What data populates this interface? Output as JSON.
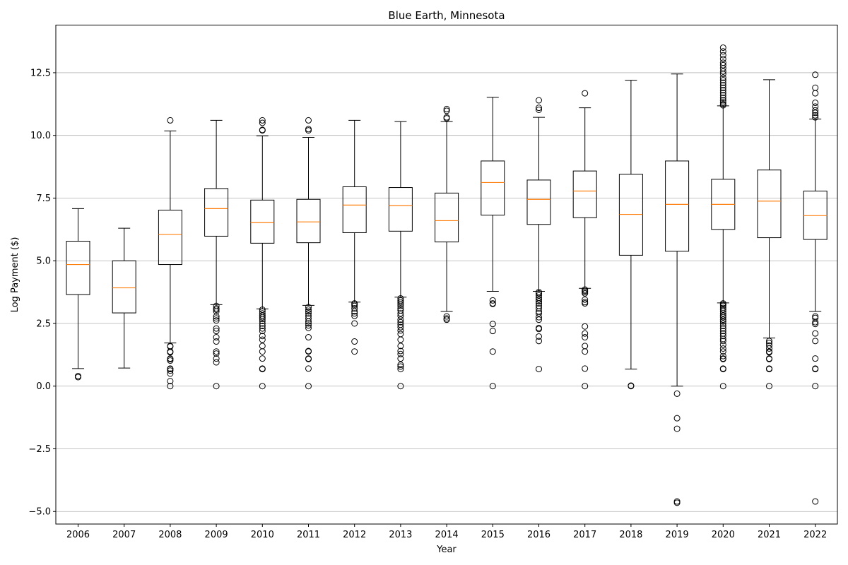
{
  "chart_data": {
    "type": "box",
    "title": "Blue Earth, Minnesota",
    "xlabel": "Year",
    "ylabel": "Log Payment ($)",
    "ylim": [
      -5.5,
      14.4
    ],
    "yticks": [
      -5.0,
      -2.5,
      0.0,
      2.5,
      5.0,
      7.5,
      10.0,
      12.5
    ],
    "ytick_labels": [
      "−5.0",
      "−2.5",
      "0.0",
      "2.5",
      "5.0",
      "7.5",
      "10.0",
      "12.5"
    ],
    "grid": "y",
    "colors": {
      "box": "#000000",
      "median": "#ff7f0e",
      "grid": "#b0b0b0"
    },
    "categories": [
      "2006",
      "2007",
      "2008",
      "2009",
      "2010",
      "2011",
      "2012",
      "2013",
      "2014",
      "2015",
      "2016",
      "2017",
      "2018",
      "2019",
      "2020",
      "2021",
      "2022"
    ],
    "boxes": [
      {
        "year": "2006",
        "whislo": 0.7,
        "q1": 3.65,
        "med": 4.85,
        "q3": 5.78,
        "whishi": 7.08,
        "fliers": [
          0.36,
          0.4
        ]
      },
      {
        "year": "2007",
        "whislo": 0.72,
        "q1": 2.92,
        "med": 3.92,
        "q3": 5.0,
        "whishi": 6.3,
        "fliers": []
      },
      {
        "year": "2008",
        "whislo": 1.72,
        "q1": 4.85,
        "med": 6.05,
        "q3": 7.02,
        "whishi": 10.18,
        "fliers": [
          10.6,
          1.6,
          1.58,
          1.38,
          1.35,
          1.1,
          1.08,
          1.02,
          0.7,
          0.68,
          0.62,
          0.5,
          0.2,
          0.0
        ]
      },
      {
        "year": "2009",
        "whislo": 3.25,
        "q1": 5.98,
        "med": 7.08,
        "q3": 7.88,
        "whishi": 10.6,
        "fliers": [
          3.2,
          3.1,
          3.05,
          2.98,
          2.78,
          2.7,
          2.62,
          2.3,
          2.2,
          1.95,
          1.78,
          1.38,
          1.3,
          1.1,
          0.95,
          0.0
        ]
      },
      {
        "year": "2010",
        "whislo": 3.08,
        "q1": 5.7,
        "med": 6.52,
        "q3": 7.42,
        "whishi": 9.98,
        "fliers": [
          10.6,
          10.5,
          10.22,
          10.2,
          3.05,
          2.98,
          2.9,
          2.82,
          2.75,
          2.68,
          2.6,
          2.5,
          2.4,
          2.3,
          2.2,
          2.0,
          1.85,
          1.6,
          1.38,
          1.1,
          0.7,
          0.68,
          0.0
        ]
      },
      {
        "year": "2011",
        "whislo": 3.22,
        "q1": 5.72,
        "med": 6.55,
        "q3": 7.45,
        "whishi": 9.92,
        "fliers": [
          10.6,
          10.25,
          10.2,
          3.15,
          3.05,
          2.98,
          2.9,
          2.8,
          2.7,
          2.58,
          2.5,
          2.42,
          2.32,
          1.95,
          1.4,
          1.38,
          1.1,
          1.08,
          0.7,
          0.0
        ]
      },
      {
        "year": "2012",
        "whislo": 3.35,
        "q1": 6.12,
        "med": 7.22,
        "q3": 7.95,
        "whishi": 10.6,
        "fliers": [
          3.3,
          3.25,
          3.2,
          3.1,
          2.98,
          2.9,
          2.8,
          2.5,
          1.78,
          1.38
        ]
      },
      {
        "year": "2013",
        "whislo": 3.55,
        "q1": 6.18,
        "med": 7.2,
        "q3": 7.92,
        "whishi": 10.55,
        "fliers": [
          3.5,
          3.42,
          3.35,
          3.28,
          3.2,
          3.1,
          3.02,
          2.9,
          2.8,
          2.65,
          2.55,
          2.45,
          2.35,
          2.22,
          2.08,
          1.85,
          1.6,
          1.4,
          1.28,
          1.1,
          0.85,
          0.78,
          0.68,
          0.0
        ]
      },
      {
        "year": "2014",
        "whislo": 2.98,
        "q1": 5.75,
        "med": 6.6,
        "q3": 7.7,
        "whishi": 10.55,
        "fliers": [
          11.05,
          10.98,
          10.72,
          10.68,
          2.78,
          2.7,
          2.65
        ]
      },
      {
        "year": "2015",
        "whislo": 3.78,
        "q1": 6.82,
        "med": 8.12,
        "q3": 8.98,
        "whishi": 11.52,
        "fliers": [
          3.42,
          3.3,
          3.28,
          2.48,
          2.2,
          1.38,
          0.0
        ]
      },
      {
        "year": "2016",
        "whislo": 3.78,
        "q1": 6.45,
        "med": 7.45,
        "q3": 8.22,
        "whishi": 10.72,
        "fliers": [
          11.4,
          11.1,
          11.02,
          3.75,
          3.7,
          3.62,
          3.52,
          3.45,
          3.38,
          3.3,
          3.2,
          3.1,
          2.98,
          2.9,
          2.75,
          2.65,
          2.32,
          2.28,
          1.98,
          1.8,
          0.68
        ]
      },
      {
        "year": "2017",
        "whislo": 3.9,
        "q1": 6.72,
        "med": 7.78,
        "q3": 8.58,
        "whishi": 11.1,
        "fliers": [
          11.68,
          3.85,
          3.8,
          3.75,
          3.7,
          3.45,
          3.35,
          3.3,
          2.38,
          2.1,
          1.95,
          1.6,
          1.38,
          0.7,
          0.0
        ]
      },
      {
        "year": "2018",
        "whislo": 0.68,
        "q1": 5.22,
        "med": 6.85,
        "q3": 8.45,
        "whishi": 12.2,
        "fliers": [
          0.02,
          0.0
        ]
      },
      {
        "year": "2019",
        "whislo": 0.0,
        "q1": 5.38,
        "med": 7.25,
        "q3": 8.98,
        "whishi": 12.45,
        "fliers": [
          -0.3,
          -1.28,
          -1.7,
          -4.6,
          -4.65
        ]
      },
      {
        "year": "2020",
        "whislo": 3.32,
        "q1": 6.25,
        "med": 7.25,
        "q3": 8.25,
        "whishi": 11.18,
        "fliers": [
          13.5,
          13.35,
          13.2,
          13.05,
          12.9,
          12.8,
          12.68,
          12.55,
          12.45,
          12.3,
          12.2,
          12.1,
          12.0,
          11.9,
          11.8,
          11.7,
          11.6,
          11.5,
          11.4,
          11.32,
          11.25,
          11.2,
          3.3,
          3.25,
          3.2,
          3.12,
          3.05,
          2.98,
          2.9,
          2.82,
          2.75,
          2.65,
          2.58,
          2.5,
          2.4,
          2.3,
          2.2,
          2.1,
          2.0,
          1.88,
          1.8,
          1.65,
          1.5,
          1.38,
          1.2,
          1.1,
          1.08,
          0.7,
          0.68,
          0.0
        ]
      },
      {
        "year": "2021",
        "whislo": 1.92,
        "q1": 5.92,
        "med": 7.38,
        "q3": 8.62,
        "whishi": 12.22,
        "fliers": [
          1.8,
          1.72,
          1.62,
          1.5,
          1.38,
          1.35,
          1.1,
          1.08,
          0.7,
          0.68,
          0.0
        ]
      },
      {
        "year": "2022",
        "whislo": 2.98,
        "q1": 5.85,
        "med": 6.8,
        "q3": 7.78,
        "whishi": 10.65,
        "fliers": [
          12.42,
          11.9,
          11.68,
          11.3,
          11.15,
          11.0,
          10.9,
          10.8,
          10.72,
          2.78,
          2.72,
          2.55,
          2.48,
          2.1,
          1.8,
          1.1,
          0.7,
          0.68,
          0.0,
          -4.6
        ]
      }
    ]
  }
}
